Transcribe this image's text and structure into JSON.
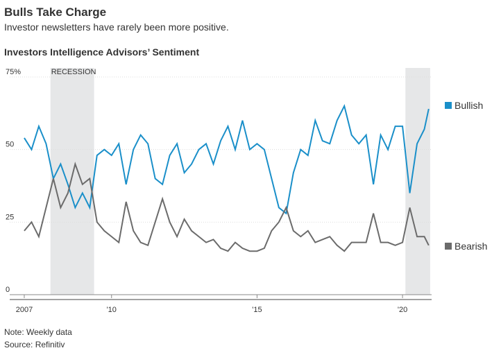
{
  "chart_data": {
    "type": "line",
    "title": "Bulls Take Charge",
    "subtitle": "Investor newsletters have rarely been more positive.",
    "chart_title": "Investors Intelligence Advisors’ Sentiment",
    "note": "Note: Weekly data",
    "source": "Source: Refinitiv",
    "annotation": "RECESSION",
    "recessions": [
      [
        2007.9,
        2009.4
      ],
      [
        2020.1,
        2020.95
      ]
    ],
    "x": [
      2007,
      2007.25,
      2007.5,
      2007.75,
      2008,
      2008.25,
      2008.5,
      2008.75,
      2009,
      2009.25,
      2009.5,
      2009.75,
      2010,
      2010.25,
      2010.5,
      2010.75,
      2011,
      2011.25,
      2011.5,
      2011.75,
      2012,
      2012.25,
      2012.5,
      2012.75,
      2013,
      2013.25,
      2013.5,
      2013.75,
      2014,
      2014.25,
      2014.5,
      2014.75,
      2015,
      2015.25,
      2015.5,
      2015.75,
      2016,
      2016.25,
      2016.5,
      2016.75,
      2017,
      2017.25,
      2017.5,
      2017.75,
      2018,
      2018.25,
      2018.5,
      2018.75,
      2019,
      2019.25,
      2019.5,
      2019.75,
      2020,
      2020.25,
      2020.5,
      2020.75,
      2020.9
    ],
    "series": [
      {
        "name": "Bullish",
        "color": "#1a8fc9",
        "values": [
          54,
          50,
          58,
          52,
          40,
          45,
          38,
          30,
          35,
          30,
          48,
          50,
          48,
          52,
          38,
          50,
          55,
          52,
          40,
          38,
          48,
          52,
          42,
          45,
          50,
          52,
          45,
          53,
          58,
          50,
          60,
          50,
          52,
          50,
          40,
          30,
          28,
          42,
          50,
          48,
          60,
          53,
          52,
          60,
          65,
          55,
          52,
          55,
          38,
          55,
          50,
          58,
          58,
          35,
          52,
          57,
          64
        ]
      },
      {
        "name": "Bearish",
        "color": "#6b6b6b",
        "values": [
          22,
          25,
          20,
          30,
          40,
          30,
          35,
          45,
          38,
          40,
          25,
          22,
          20,
          18,
          32,
          22,
          18,
          17,
          25,
          33,
          25,
          20,
          26,
          22,
          20,
          18,
          19,
          16,
          15,
          18,
          16,
          15,
          15,
          16,
          22,
          25,
          30,
          22,
          20,
          22,
          18,
          19,
          20,
          17,
          15,
          18,
          18,
          18,
          28,
          18,
          18,
          17,
          18,
          30,
          20,
          20,
          17
        ]
      }
    ],
    "xlim": [
      2006.5,
      2021
    ],
    "xticks": [
      {
        "value": 2007,
        "label": "2007"
      },
      {
        "value": 2010,
        "label": "'10"
      },
      {
        "value": 2015,
        "label": "'15"
      },
      {
        "value": 2020,
        "label": "'20"
      }
    ],
    "ylim": [
      0,
      75
    ],
    "yticks": [
      0,
      25,
      50,
      {
        "value": 75,
        "label": "75%"
      }
    ],
    "grid": true
  }
}
